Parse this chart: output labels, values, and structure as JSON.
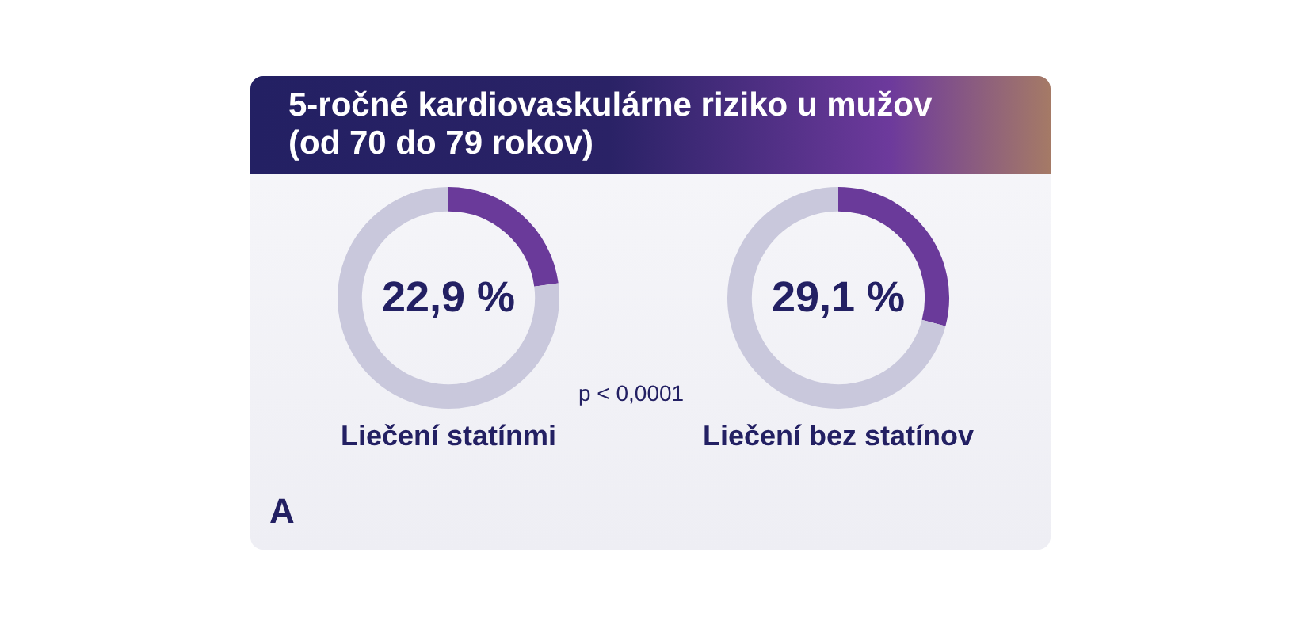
{
  "chart_data": [
    {
      "type": "donut",
      "title": "5-ročné kardiovaskulárne riziko u mužov (od 70 do 79 rokov)",
      "xlabel": "Liečení statínmi",
      "categories": [
        null,
        null
      ],
      "values": [
        22.9,
        77.1
      ],
      "colors": [
        "#6a3a9a",
        "#c9c8dc"
      ],
      "value_labels": [
        "22,9 %",
        null
      ],
      "annotations": [
        "p < 0,0001",
        "A"
      ]
    },
    {
      "type": "donut",
      "xlabel": "Liečení bez statínov",
      "categories": [
        null,
        null
      ],
      "values": [
        29.1,
        70.9
      ],
      "colors": [
        "#6a3a9a",
        "#c9c8dc"
      ],
      "value_labels": [
        "29,1 %",
        null
      ]
    }
  ]
}
